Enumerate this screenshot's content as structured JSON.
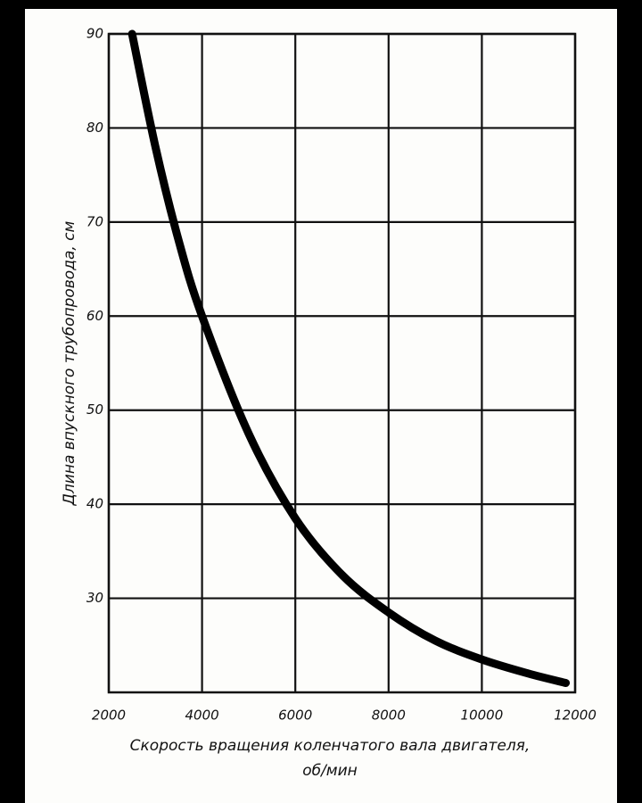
{
  "chart_data": {
    "type": "line",
    "ylabel": "Длина впускного трубопровода, см",
    "xlabel": [
      "Скорость вращения коленчатого вала двигателя,",
      "об/мин"
    ],
    "xlim": [
      2000,
      12000
    ],
    "xticks": [
      2000,
      4000,
      6000,
      8000,
      10000,
      12000
    ],
    "ylim": [
      20,
      90
    ],
    "yticks": [
      30,
      40,
      50,
      60,
      70,
      80,
      90
    ],
    "grid": true,
    "series": [
      {
        "color": "#000000",
        "x": [
          2500,
          3000,
          3500,
          4000,
          5000,
          6000,
          7000,
          8000,
          9000,
          10000,
          11000,
          11800
        ],
        "values": [
          90,
          78,
          68,
          60,
          47.5,
          38.5,
          32.5,
          28.5,
          25.5,
          23.5,
          22,
          21
        ]
      }
    ]
  }
}
